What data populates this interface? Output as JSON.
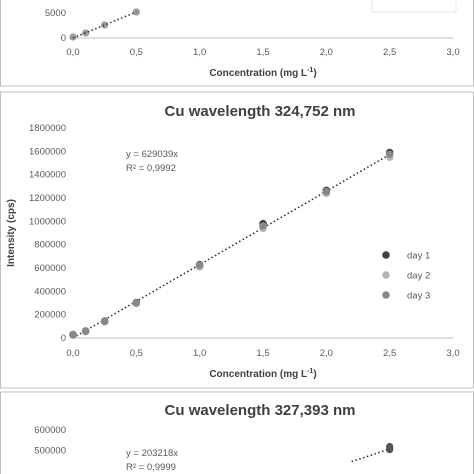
{
  "chart_data": [
    {
      "type": "scatter",
      "title": "",
      "xlabel": "Concentration (mg L",
      "xlabel_sup": "-1",
      "xlabel_suffix": ")",
      "ylabel": "",
      "xlim": [
        0,
        3
      ],
      "x_ticks": [
        "0,0",
        "0,5",
        "1,0",
        "1,5",
        "2,0",
        "2,5",
        "3,0"
      ],
      "y_ticks": [
        "0",
        "5000"
      ],
      "ylim": [
        0,
        5000
      ],
      "series": [
        {
          "name": "",
          "color": "#9a9a9a",
          "x": [
            0,
            0.1,
            0.25,
            0.5
          ],
          "y": [
            200,
            1000,
            2600,
            5200
          ]
        }
      ]
    },
    {
      "type": "scatter",
      "title": "Cu wavelength 324,752 nm",
      "xlabel": "Concentration (mg L",
      "xlabel_sup": "-1",
      "xlabel_suffix": ")",
      "ylabel": "Intensity (cps)",
      "xlim": [
        0,
        3
      ],
      "ylim": [
        0,
        1800000
      ],
      "x_ticks": [
        "0,0",
        "0,5",
        "1,0",
        "1,5",
        "2,0",
        "2,5",
        "3,0"
      ],
      "y_ticks": [
        "0",
        "200000",
        "400000",
        "600000",
        "800000",
        "1000000",
        "1200000",
        "1400000",
        "1600000",
        "1800000"
      ],
      "equation": "y = 629039x",
      "r_squared": "R² = 0,9992",
      "legend_position": "right",
      "series": [
        {
          "name": "day 1",
          "color": "#404040",
          "x": [
            0,
            0.1,
            0.25,
            0.5,
            1.0,
            1.5,
            2.0,
            2.5
          ],
          "y": [
            30000,
            60000,
            145000,
            300000,
            630000,
            980000,
            1265000,
            1590000
          ]
        },
        {
          "name": "day 2",
          "color": "#b5b5b5",
          "x": [
            0,
            0.1,
            0.25,
            0.5,
            1.0,
            1.5,
            2.0,
            2.5
          ],
          "y": [
            25000,
            55000,
            140000,
            295000,
            610000,
            940000,
            1240000,
            1550000
          ]
        },
        {
          "name": "day 3",
          "color": "#888888",
          "x": [
            0,
            0.1,
            0.25,
            0.5,
            1.0,
            1.5,
            2.0,
            2.5
          ],
          "y": [
            28000,
            58000,
            142000,
            305000,
            625000,
            960000,
            1255000,
            1575000
          ]
        }
      ],
      "trendline": {
        "slope": 629039
      }
    },
    {
      "type": "scatter",
      "title": "Cu wavelength 327,393 nm",
      "xlabel": "",
      "ylabel": "",
      "xlim": [
        0,
        3
      ],
      "ylim": [
        0,
        600000
      ],
      "y_ticks": [
        "500000",
        "600000"
      ],
      "equation": "y = 203218x",
      "r_squared": "R² = 0,9999",
      "series": [
        {
          "name": "",
          "color": "#555555",
          "x": [
            2.5,
            2.5,
            2.5
          ],
          "y": [
            520000,
            505000,
            512000
          ]
        }
      ],
      "trendline": {
        "slope": 203218
      }
    }
  ]
}
